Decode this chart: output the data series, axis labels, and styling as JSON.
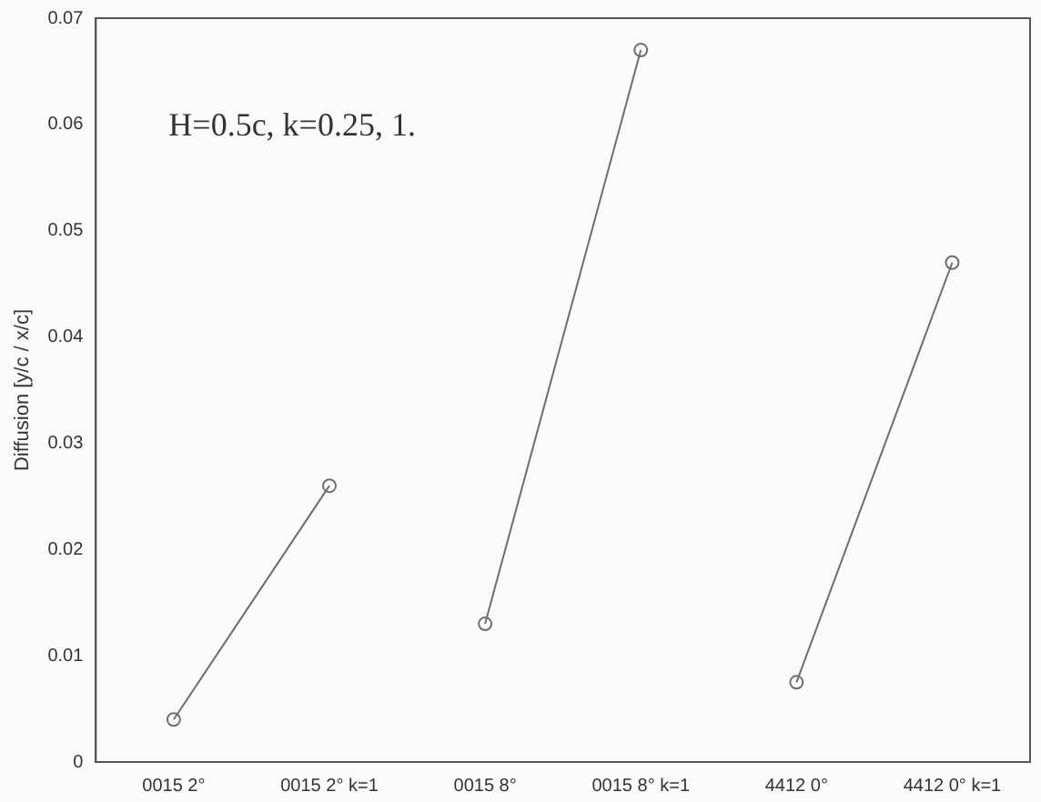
{
  "chart_data": {
    "type": "line",
    "ylabel": "Diffusion [y/c / x/c]",
    "annotations": [
      "H=0.5c, k=0.25, 1."
    ],
    "categories": [
      "0015 2°",
      "0015 2° k=1",
      "0015 8°",
      "0015 8° k=1",
      "4412 0°",
      "4412 0° k=1"
    ],
    "series": [
      {
        "color": "#6e6e6e",
        "values": [
          0.004,
          0.026,
          null,
          null,
          null,
          null
        ]
      },
      {
        "color": "#6e6e6e",
        "values": [
          null,
          null,
          0.013,
          0.067,
          null,
          null
        ]
      },
      {
        "color": "#6e6e6e",
        "values": [
          null,
          null,
          null,
          null,
          0.0075,
          0.047
        ]
      }
    ],
    "ylim": [
      0,
      0.07
    ],
    "yticks": [
      0,
      0.01,
      0.02,
      0.03,
      0.04,
      0.05,
      0.06,
      0.07
    ],
    "grid": false,
    "legend": false,
    "marker": "circle",
    "line_style": "solid"
  }
}
